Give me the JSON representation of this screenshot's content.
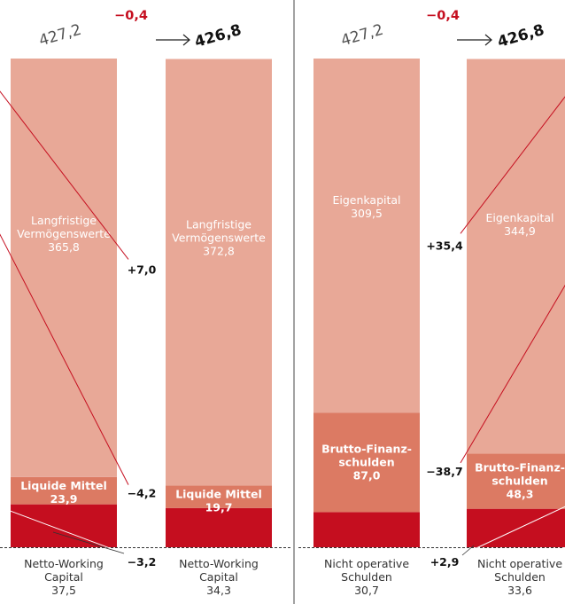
{
  "colors": {
    "light": "#e8a897",
    "mid": "#dc7a63",
    "dark": "#c50e1f",
    "delta_red": "#c50e1f",
    "line": "#c50e1f",
    "text_dark": "#111111",
    "text_grey": "#444444"
  },
  "chart_data": [
    {
      "type": "bar",
      "panel": "assets",
      "totals": {
        "from": "427,2",
        "change": "−0,4",
        "to": "426,8"
      },
      "bars": [
        {
          "segments": [
            {
              "label": "Langfristige\nVermögenswerte",
              "value_text": "365,8",
              "value": 365.8
            },
            {
              "label": "Liquide Mittel",
              "value_text": "23,9",
              "value": 23.9
            },
            {
              "label": "",
              "value": 37.5
            }
          ],
          "caption": [
            "Netto-Working",
            "Capital",
            "37,5"
          ]
        },
        {
          "segments": [
            {
              "label": "Langfristige\nVermögenswerte",
              "value_text": "372,8",
              "value": 372.8
            },
            {
              "label": "Liquide Mittel",
              "value_text": "19,7",
              "value": 19.7
            },
            {
              "label": "",
              "value": 34.3
            }
          ],
          "caption": [
            "Netto-Working",
            "Capital",
            "34,3"
          ]
        }
      ],
      "deltas": [
        {
          "text": "+7,0",
          "value": 7.0
        },
        {
          "text": "−4,2",
          "value": -4.2
        },
        {
          "text": "−3,2",
          "value": -3.2
        }
      ]
    },
    {
      "type": "bar",
      "panel": "liabilities",
      "totals": {
        "from": "427,2",
        "change": "−0,4",
        "to": "426,8"
      },
      "bars": [
        {
          "segments": [
            {
              "label": "Eigenkapital",
              "value_text": "309,5",
              "value": 309.5
            },
            {
              "label": "Brutto-Finanz-\nschulden",
              "value_text": "87,0",
              "value": 87.0
            },
            {
              "label": "",
              "value": 30.7
            }
          ],
          "caption": [
            "Nicht operative",
            "Schulden",
            "30,7"
          ]
        },
        {
          "segments": [
            {
              "label": "Eigenkapital",
              "value_text": "344,9",
              "value": 344.9
            },
            {
              "label": "Brutto-Finanz-\nschulden",
              "value_text": "48,3",
              "value": 48.3
            },
            {
              "label": "",
              "value": 33.6
            }
          ],
          "caption": [
            "Nicht operative",
            "Schulden",
            "33,6"
          ]
        }
      ],
      "deltas": [
        {
          "text": "+35,4",
          "value": 35.4
        },
        {
          "text": "−38,7",
          "value": -38.7
        },
        {
          "text": "+2,9",
          "value": 2.9
        }
      ]
    }
  ]
}
